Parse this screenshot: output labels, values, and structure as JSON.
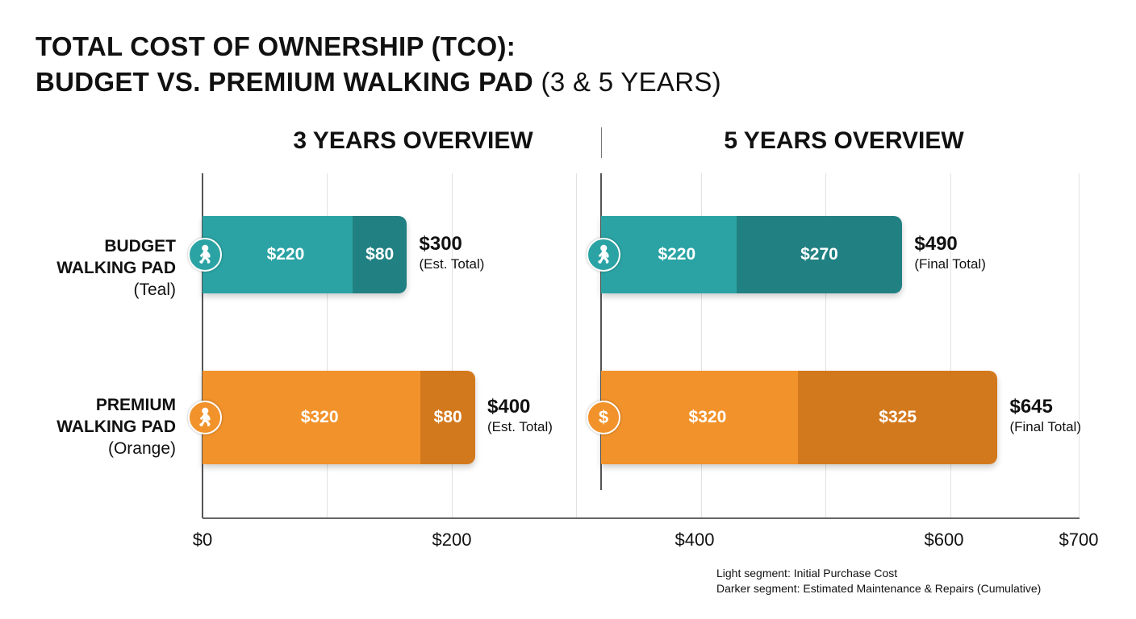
{
  "title": {
    "line1": "TOTAL COST OF OWNERSHIP (TCO):",
    "line2_bold": "BUDGET VS. PREMIUM WALKING PAD",
    "line2_light": "(3 & 5 YEARS)"
  },
  "chart_data": [
    {
      "type": "bar",
      "stacked": true,
      "orientation": "horizontal",
      "title": "3 YEARS OVERVIEW",
      "categories": [
        "BUDGET WALKING PAD (Teal)",
        "PREMIUM WALKING PAD (Orange)"
      ],
      "series": [
        {
          "name": "Light segment: Initial Purchase Cost",
          "values": [
            220,
            320
          ]
        },
        {
          "name": "Darker segment: Estimated Maintenance & Repairs (Cumulative)",
          "values": [
            80,
            80
          ]
        }
      ],
      "totals": [
        300,
        400
      ],
      "total_note": "(Est. Total)"
    },
    {
      "type": "bar",
      "stacked": true,
      "orientation": "horizontal",
      "title": "5 YEARS OVERVIEW",
      "categories": [
        "BUDGET WALKING PAD (Teal)",
        "PREMIUM WALKING PAD (Orange)"
      ],
      "series": [
        {
          "name": "Light segment: Initial Purchase Cost",
          "values": [
            220,
            320
          ]
        },
        {
          "name": "Darker segment: Estimated Maintenance & Repairs (Cumulative)",
          "values": [
            270,
            325
          ]
        }
      ],
      "totals": [
        490,
        645
      ],
      "total_note": "(Final Total)"
    }
  ],
  "rows": [
    {
      "line1": "BUDGET",
      "line2": "WALKING PAD",
      "line3": "(Teal)",
      "color": "#2ba3a4",
      "dark": "#218082",
      "icon": "walking-person"
    },
    {
      "line1": "PREMIUM",
      "line2": "WALKING PAD",
      "line3": "(Orange)",
      "color": "#f2922b",
      "dark": "#d3791d",
      "icon": "walking-person"
    }
  ],
  "right_icons": [
    "walking-person",
    "dollar-sign"
  ],
  "x_ticks": [
    "$0",
    "$200",
    "$400",
    "$600",
    "$700"
  ],
  "legend": {
    "light": "Light segment: Initial Purchase Cost",
    "dark": "Darker segment: Estimated Maintenance & Repairs (Cumulative)"
  }
}
